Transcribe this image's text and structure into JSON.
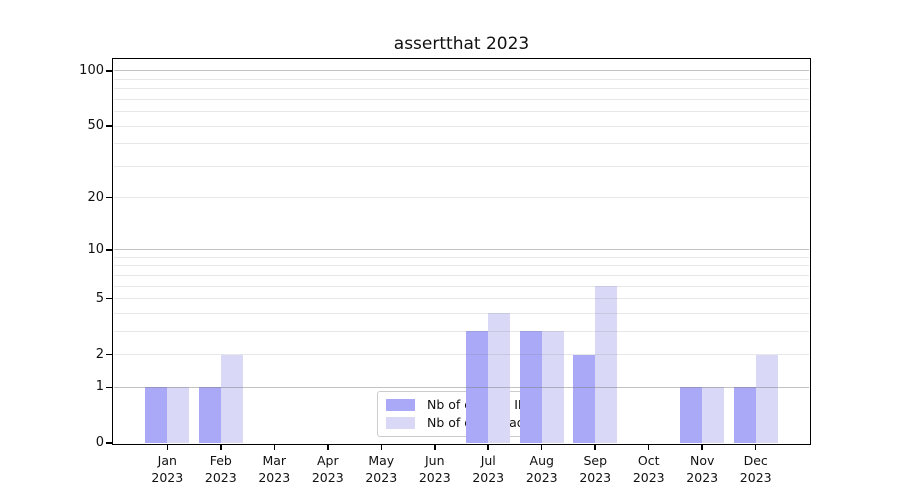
{
  "chart_data": {
    "type": "bar",
    "title": "assertthat 2023",
    "categories": [
      "Jan\n2023",
      "Feb\n2023",
      "Mar\n2023",
      "Apr\n2023",
      "May\n2023",
      "Jun\n2023",
      "Jul\n2023",
      "Aug\n2023",
      "Sep\n2023",
      "Oct\n2023",
      "Nov\n2023",
      "Dec\n2023"
    ],
    "series": [
      {
        "name": "Nb of distinct IPs",
        "color": "#a9a9f7",
        "values": [
          1,
          1,
          0,
          0,
          0,
          0,
          3,
          3,
          2,
          0,
          1,
          1
        ]
      },
      {
        "name": "Nb of downloads",
        "color": "#d9d9f7",
        "values": [
          1,
          2,
          0,
          0,
          0,
          0,
          4,
          3,
          6,
          0,
          1,
          2
        ]
      }
    ],
    "xlabel": "",
    "ylabel": "",
    "y_axis": {
      "scale": "log1p",
      "tick_values": [
        0,
        1,
        2,
        5,
        10,
        20,
        50,
        100
      ],
      "tick_labels": [
        "0",
        "1",
        "2",
        "5",
        "10",
        "20",
        "50",
        "100"
      ],
      "major_gridlines": [
        1,
        10,
        100
      ],
      "minor_gridlines": [
        2,
        3,
        4,
        5,
        6,
        7,
        8,
        9,
        20,
        30,
        40,
        50,
        60,
        70,
        80,
        90
      ],
      "vmax": 115,
      "grid": "on"
    },
    "legend": {
      "position": "lower center",
      "entries": [
        {
          "label": "Nb of distinct IPs",
          "color": "#a9a9f7"
        },
        {
          "label": "Nb of downloads",
          "color": "#d9d9f7"
        }
      ]
    }
  },
  "colors": {
    "background": "#ffffff",
    "spine": "#000000",
    "major_gridline": "#b3b3b3",
    "minor_gridline": "#e7e7e7",
    "text": "#111111"
  }
}
